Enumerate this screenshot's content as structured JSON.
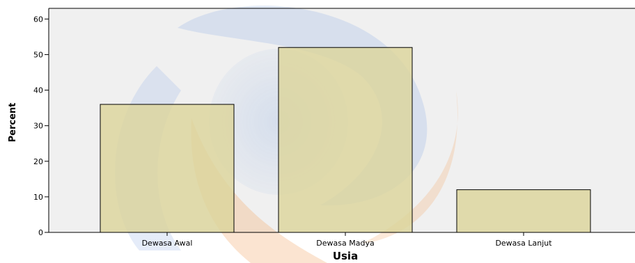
{
  "chart_data": {
    "type": "bar",
    "categories": [
      "Dewasa Awal",
      "Dewasa Madya",
      "Dewasa Lanjut"
    ],
    "values": [
      36,
      52,
      12
    ],
    "xlabel": "Usia",
    "ylabel": "Percent",
    "ylim": [
      0,
      63
    ],
    "yticks": [
      "0",
      "10",
      "20",
      "30",
      "40",
      "50",
      "60"
    ],
    "grid": false,
    "colors": {
      "bar_fill": "#dcd49a",
      "bar_stroke": "#000000",
      "plot_background": "#f0f0f0",
      "watermark_blue": "#2f6fd6",
      "watermark_orange": "#f07a1e"
    }
  }
}
